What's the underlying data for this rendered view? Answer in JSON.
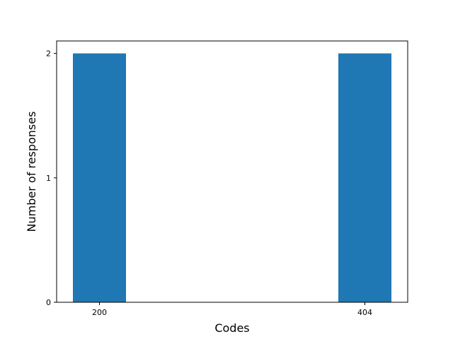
{
  "chart_data": {
    "type": "bar",
    "categories": [
      "200",
      "404"
    ],
    "values": [
      2,
      2
    ],
    "xlabel": "Codes",
    "ylabel": "Number of responses",
    "ylim": [
      0,
      2.1
    ],
    "yticks": [
      "0",
      "1",
      "2"
    ],
    "grid": false,
    "legend": "none",
    "bar_color": "#1f77b4"
  }
}
